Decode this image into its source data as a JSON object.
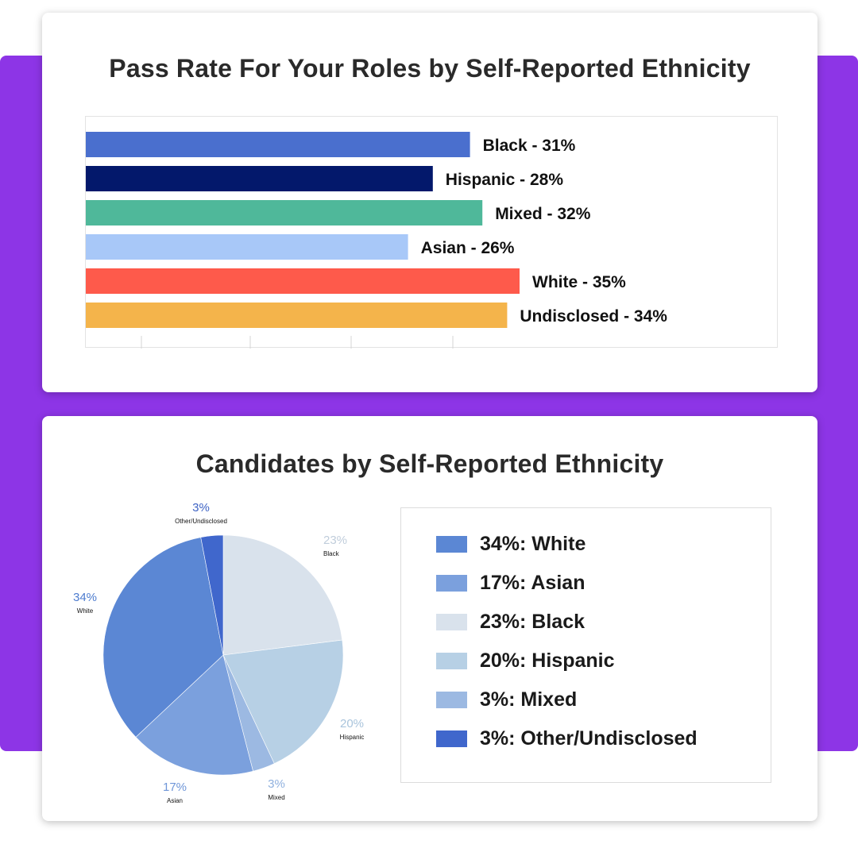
{
  "colors": {
    "backdrop": "#8d35e6"
  },
  "bar_card": {
    "title": "Pass Rate For Your Roles by Self-Reported Ethnicity"
  },
  "pie_card": {
    "title": "Candidates by Self-Reported Ethnicity"
  },
  "chart_data": [
    {
      "type": "bar",
      "orientation": "horizontal",
      "title": "Pass Rate For Your Roles by Self-Reported Ethnicity",
      "categories": [
        "Black",
        "Hispanic",
        "Mixed",
        "Asian",
        "White",
        "Undisclosed"
      ],
      "values": [
        31,
        28,
        32,
        26,
        35,
        34
      ],
      "unit": "%",
      "labels": [
        "Black - 31%",
        "Hispanic - 28%",
        "Mixed - 32%",
        "Asian - 26%",
        "White - 35%",
        "Undisclosed - 34%"
      ],
      "colors": [
        "#4a6fce",
        "#03186b",
        "#4fb89a",
        "#a8c8f8",
        "#fe5a4b",
        "#f4b44b"
      ],
      "xlim": [
        0,
        35
      ],
      "grid": false,
      "ticks_visible": true
    },
    {
      "type": "pie",
      "title": "Candidates by Self-Reported Ethnicity",
      "start": "top",
      "direction": "clockwise",
      "slices": [
        {
          "name": "Black",
          "value": 23,
          "pct_label": "23%",
          "color": "#d9e2ec",
          "label_color": "#c0cddb"
        },
        {
          "name": "Hispanic",
          "value": 20,
          "pct_label": "20%",
          "color": "#b7d0e5",
          "label_color": "#a9c4dc"
        },
        {
          "name": "Mixed",
          "value": 3,
          "pct_label": "3%",
          "color": "#9cb9e2",
          "label_color": "#8fb0de"
        },
        {
          "name": "Asian",
          "value": 17,
          "pct_label": "17%",
          "color": "#7ba0dd",
          "label_color": "#6f96d8"
        },
        {
          "name": "White",
          "value": 34,
          "pct_label": "34%",
          "color": "#5b87d4",
          "label_color": "#4d7ccf"
        },
        {
          "name": "Other/Undisclosed",
          "value": 3,
          "pct_label": "3%",
          "color": "#4067cc",
          "label_color": "#3e63c5"
        }
      ],
      "legend": {
        "placement": "right",
        "items": [
          {
            "label": "34%: White",
            "color": "#5b87d4"
          },
          {
            "label": "17%: Asian",
            "color": "#7ba0dd"
          },
          {
            "label": "23%: Black",
            "color": "#d9e2ec"
          },
          {
            "label": "20%: Hispanic",
            "color": "#b7d0e5"
          },
          {
            "label": "3%: Mixed",
            "color": "#9cb9e2"
          },
          {
            "label": "3%: Other/Undisclosed",
            "color": "#4067cc"
          }
        ]
      }
    }
  ]
}
